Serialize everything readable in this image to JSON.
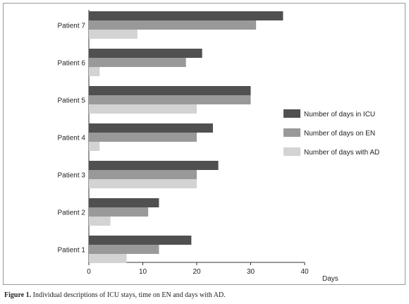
{
  "chart_data": {
    "type": "bar",
    "orientation": "horizontal",
    "categories": [
      "Patient 1",
      "Patient 2",
      "Patient 3",
      "Patient 4",
      "Patient 5",
      "Patient 6",
      "Patient 7"
    ],
    "series": [
      {
        "name": "Number of days in ICU",
        "color": "#505050",
        "values": [
          19,
          13,
          24,
          23,
          30,
          21,
          36
        ]
      },
      {
        "name": "Number of days on EN",
        "color": "#999999",
        "values": [
          13,
          11,
          20,
          20,
          30,
          18,
          31
        ]
      },
      {
        "name": "Number of days with AD",
        "color": "#d3d3d3",
        "values": [
          7,
          4,
          20,
          2,
          20,
          2,
          9
        ]
      }
    ],
    "xlabel": "Days",
    "ylabel": "",
    "xlim": [
      0,
      40
    ],
    "xticks": [
      "0",
      "10",
      "20",
      "30",
      "40"
    ],
    "grid": false,
    "legend_position": "right"
  },
  "caption": {
    "label": "Figure 1.",
    "text": " Individual descriptions of ICU stays, time on EN and days with AD."
  }
}
